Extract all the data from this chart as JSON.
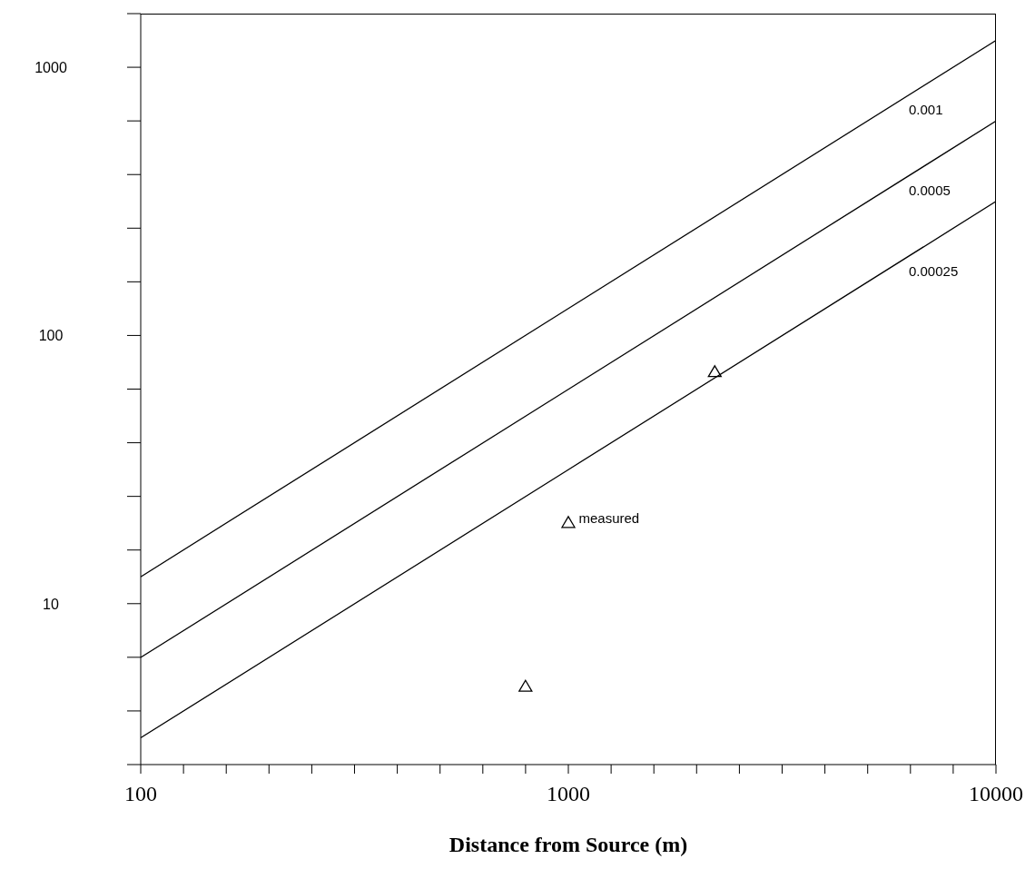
{
  "chart_data": {
    "type": "line",
    "xlabel": "Distance from Source (m)",
    "log": "xy",
    "xlim": [
      100,
      10000
    ],
    "ylim": [
      2.512,
      1585
    ],
    "xticks": [
      100,
      {
        "value": 125.9,
        "label": null
      },
      {
        "value": 158.5,
        "label": null
      },
      {
        "value": 199.5,
        "label": null
      },
      {
        "value": 251.2,
        "label": null
      },
      {
        "value": 316.2,
        "label": null
      },
      {
        "value": 398.1,
        "label": null
      },
      {
        "value": 501.2,
        "label": null
      },
      {
        "value": 631,
        "label": null
      },
      {
        "value": 794.3,
        "label": null
      },
      1000,
      {
        "value": 1259,
        "label": null
      },
      {
        "value": 1585,
        "label": null
      },
      {
        "value": 1995,
        "label": null
      },
      {
        "value": 2512,
        "label": null
      },
      {
        "value": 3162,
        "label": null
      },
      {
        "value": 3981,
        "label": null
      },
      {
        "value": 5012,
        "label": null
      },
      {
        "value": 6310,
        "label": null
      },
      {
        "value": 7943,
        "label": null
      },
      10000
    ],
    "yticks": [
      {
        "value": 2.512,
        "label": null
      },
      {
        "value": 3.981,
        "label": null
      },
      {
        "value": 6.31,
        "label": null
      },
      10,
      {
        "value": 15.85,
        "label": null
      },
      {
        "value": 25.12,
        "label": null
      },
      {
        "value": 39.81,
        "label": null
      },
      {
        "value": 63.1,
        "label": null
      },
      100,
      {
        "value": 158.5,
        "label": null
      },
      {
        "value": 251.2,
        "label": null
      },
      {
        "value": 398.1,
        "label": null
      },
      {
        "value": 631,
        "label": null
      },
      1000,
      {
        "value": 1585,
        "label": null
      }
    ],
    "series": [
      {
        "name": "0.001",
        "color": "#000000",
        "x": [
          100,
          1000,
          10000
        ],
        "values": [
          12.6,
          126,
          1260
        ],
        "marker": "none"
      },
      {
        "name": "0.0005",
        "color": "#000000",
        "x": [
          100,
          1000,
          10000
        ],
        "values": [
          6.3,
          63,
          630
        ],
        "marker": "none"
      },
      {
        "name": "0.00025",
        "color": "#000000",
        "x": [
          100,
          1000,
          10000
        ],
        "values": [
          3.16,
          31.6,
          316
        ],
        "marker": "none"
      },
      {
        "name": "measured",
        "type": "scatter",
        "color": "#000000",
        "x": [
          794,
          1000,
          2200
        ],
        "values": [
          4.9,
          20,
          73
        ],
        "marker": "triangle"
      }
    ]
  }
}
